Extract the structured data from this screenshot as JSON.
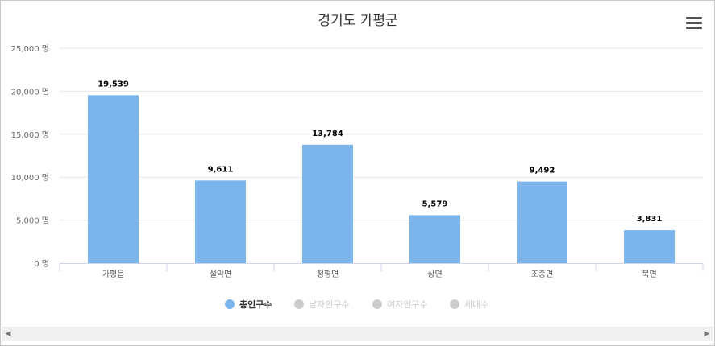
{
  "chart_data": {
    "type": "bar",
    "title": "경기도 가평군",
    "categories": [
      "가평읍",
      "설악면",
      "청평면",
      "상면",
      "조종면",
      "북면"
    ],
    "series": [
      {
        "name": "총인구수",
        "values": [
          19539,
          9611,
          13784,
          5579,
          9492,
          3831
        ],
        "visible": true
      }
    ],
    "value_labels": [
      "19,539",
      "9,611",
      "13,784",
      "5,579",
      "9,492",
      "3,831"
    ],
    "ylim": [
      0,
      25000
    ],
    "yticks": [
      "0 명",
      "5,000 명",
      "10,000 명",
      "15,000 명",
      "20,000 명",
      "25,000 명"
    ],
    "grid": true,
    "legend_position": "bottom",
    "legend": [
      {
        "label": "총인구수",
        "active": true
      },
      {
        "label": "남자인구수",
        "active": false
      },
      {
        "label": "여자인구수",
        "active": false
      },
      {
        "label": "세대수",
        "active": false
      }
    ],
    "colors": {
      "bar": "#7cb5ec",
      "grid": "#e6e6e6",
      "legend_inactive": "#cccccc",
      "legend_active_text": "#333333"
    }
  },
  "icons": {
    "menu": "hamburger-menu-icon",
    "scroll_left": "arrow-left-icon",
    "scroll_right": "arrow-right-icon"
  }
}
